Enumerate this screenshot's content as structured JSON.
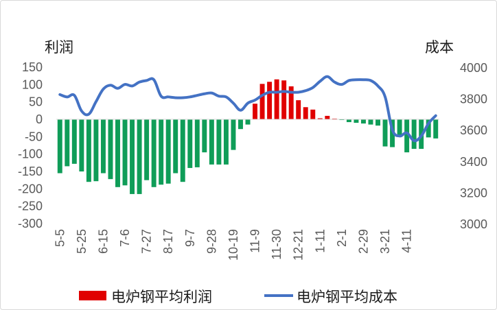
{
  "chart_data": {
    "type": "bar",
    "left_unit": "利润",
    "right_unit": "成本",
    "left_axis": {
      "min": -300,
      "max": 150,
      "step": 50
    },
    "right_axis": {
      "min": 3000,
      "max": 4000,
      "step": 200
    },
    "x_tick_labels": [
      "5-5",
      "5-25",
      "6-15",
      "7-6",
      "7-27",
      "8-17",
      "9-7",
      "9-28",
      "10-19",
      "11-9",
      "11-30",
      "12-21",
      "1-11",
      "2-1",
      "2-29",
      "3-21",
      "4-11"
    ],
    "x_tick_every": 3,
    "series": [
      {
        "name": "电炉钢平均利润",
        "type": "bar",
        "axis": "left",
        "positive_color": "#e00000",
        "negative_color": "#0f9d58",
        "values": [
          -155,
          -135,
          -128,
          -150,
          -180,
          -178,
          -155,
          -172,
          -195,
          -190,
          -215,
          -215,
          -175,
          -195,
          -188,
          -185,
          -155,
          -180,
          -140,
          -138,
          -95,
          -130,
          -130,
          -130,
          -88,
          -28,
          -15,
          45,
          102,
          108,
          115,
          112,
          95,
          55,
          35,
          28,
          3,
          10,
          2,
          -2,
          -8,
          -10,
          -12,
          -15,
          -18,
          -78,
          -80,
          -50,
          -95,
          -85,
          -85,
          -52,
          -55
        ]
      },
      {
        "name": "电炉钢平均成本",
        "type": "line",
        "axis": "right",
        "color": "#4472c4",
        "values": [
          3825,
          3810,
          3820,
          3720,
          3700,
          3780,
          3860,
          3885,
          3865,
          3890,
          3880,
          3905,
          3915,
          3920,
          3815,
          3810,
          3805,
          3805,
          3810,
          3820,
          3830,
          3835,
          3815,
          3810,
          3770,
          3725,
          3770,
          3790,
          3820,
          3840,
          3840,
          3845,
          3840,
          3840,
          3850,
          3870,
          3910,
          3940,
          3905,
          3890,
          3915,
          3920,
          3920,
          3915,
          3880,
          3810,
          3600,
          3560,
          3580,
          3530,
          3560,
          3640,
          3690
        ]
      }
    ]
  },
  "colors": {
    "left_axis_line": "#d9d9d9",
    "tick_text": "#595959"
  }
}
